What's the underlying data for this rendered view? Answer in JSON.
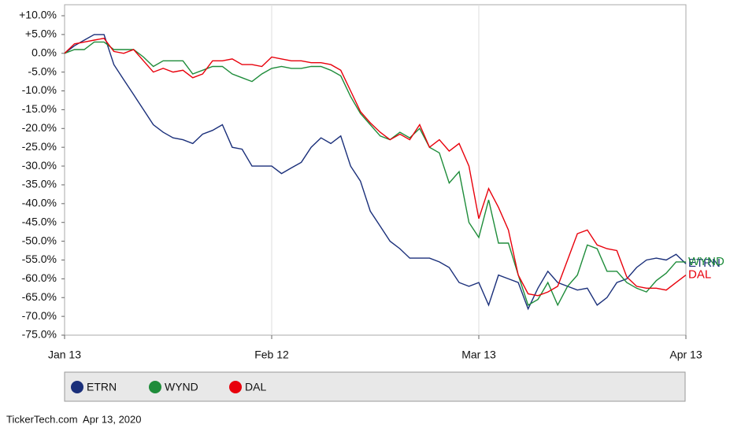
{
  "chart_data": {
    "type": "line",
    "categories": [
      "Jan 13",
      null,
      null,
      null,
      null,
      null,
      null,
      null,
      null,
      null,
      null,
      null,
      null,
      null,
      null,
      null,
      null,
      null,
      null,
      null,
      null,
      "Feb 12",
      null,
      null,
      null,
      null,
      null,
      null,
      null,
      null,
      null,
      null,
      null,
      null,
      null,
      null,
      null,
      null,
      null,
      null,
      null,
      null,
      "Mar 13",
      null,
      null,
      null,
      null,
      null,
      null,
      null,
      null,
      null,
      null,
      null,
      null,
      null,
      null,
      null,
      null,
      null,
      null,
      null,
      null,
      "Apr 13"
    ],
    "series": [
      {
        "name": "ETRN",
        "color": "#1a2f7a",
        "values": [
          0,
          2,
          3.5,
          5,
          5,
          -3,
          -7,
          -11,
          -15,
          -19,
          -21,
          -22.5,
          -23,
          -24,
          -21.5,
          -20.5,
          -19,
          -25,
          -25.5,
          -30,
          -30,
          -30,
          -32,
          -30.5,
          -29,
          -25,
          -22.5,
          -24,
          -22,
          -30,
          -34,
          -42,
          -46,
          -50,
          -52,
          -54.5,
          -54.5,
          -54.5,
          -55.5,
          -57,
          -61,
          -62,
          -61,
          -67,
          -59,
          -60,
          -61,
          -68,
          -62.5,
          -58,
          -61,
          -62,
          -63,
          -62.5,
          -67,
          -65,
          -61,
          -60,
          -57,
          -55,
          -54.5,
          -55,
          -53.5,
          -56
        ]
      },
      {
        "name": "WYND",
        "color": "#1e8c3a",
        "values": [
          0,
          1,
          1,
          3,
          3,
          1,
          1,
          1,
          -1,
          -3.5,
          -2,
          -2,
          -2,
          -5.5,
          -4.5,
          -3.5,
          -3.5,
          -5.5,
          -6.5,
          -7.5,
          -5.5,
          -4,
          -3.5,
          -4,
          -4,
          -3.5,
          -3.5,
          -4.5,
          -6,
          -11.5,
          -16,
          -19,
          -22,
          -23,
          -21,
          -22.5,
          -20,
          -25,
          -26.5,
          -34.5,
          -31.5,
          -45,
          -49,
          -39,
          -50.5,
          -50.5,
          -59,
          -67,
          -65.5,
          -61,
          -67,
          -62,
          -59,
          -51,
          -52,
          -58,
          -58,
          -61,
          -62.5,
          -63.5,
          -60.5,
          -58.5,
          -55.5,
          -55.5
        ]
      },
      {
        "name": "DAL",
        "color": "#e8000b",
        "values": [
          0,
          2.5,
          3,
          3.5,
          4,
          0.5,
          0,
          1,
          -2,
          -5,
          -4,
          -5,
          -4.5,
          -6.5,
          -5.5,
          -2,
          -2,
          -1.5,
          -3,
          -3,
          -3.5,
          -1,
          -1.5,
          -2,
          -2,
          -2.5,
          -2.5,
          -3,
          -4.5,
          -10,
          -15.5,
          -18.5,
          -21,
          -23,
          -21.5,
          -23,
          -19,
          -25,
          -23,
          -26,
          -24,
          -30,
          -44,
          -36,
          -41,
          -47,
          -59,
          -64,
          -64.5,
          -63.5,
          -62,
          -55,
          -48,
          -47,
          -51,
          -52,
          -52.5,
          -59.5,
          -62,
          -62.5,
          -62.5,
          -63,
          -61,
          -59
        ]
      }
    ],
    "ylim": [
      -75,
      10
    ],
    "yticks": [
      {
        "value": 10,
        "label": "+10.0%"
      },
      {
        "value": 5,
        "label": "+5.0%"
      },
      {
        "value": 0,
        "label": "0.0%"
      },
      {
        "value": -5,
        "label": "-5.0%"
      },
      {
        "value": -10,
        "label": "-10.0%"
      },
      {
        "value": -15,
        "label": "-15.0%"
      },
      {
        "value": -20,
        "label": "-20.0%"
      },
      {
        "value": -25,
        "label": "-25.0%"
      },
      {
        "value": -30,
        "label": "-30.0%"
      },
      {
        "value": -35,
        "label": "-35.0%"
      },
      {
        "value": -40,
        "label": "-40.0%"
      },
      {
        "value": -45,
        "label": "-45.0%"
      },
      {
        "value": -50,
        "label": "-50.0%"
      },
      {
        "value": -55,
        "label": "-55.0%"
      },
      {
        "value": -60,
        "label": "-60.0%"
      },
      {
        "value": -65,
        "label": "-65.0%"
      },
      {
        "value": -70,
        "label": "-70.0%"
      },
      {
        "value": -75,
        "label": "-75.0%"
      }
    ],
    "grid": true,
    "footer": "TickerTech.com  Apr 13, 2020"
  }
}
